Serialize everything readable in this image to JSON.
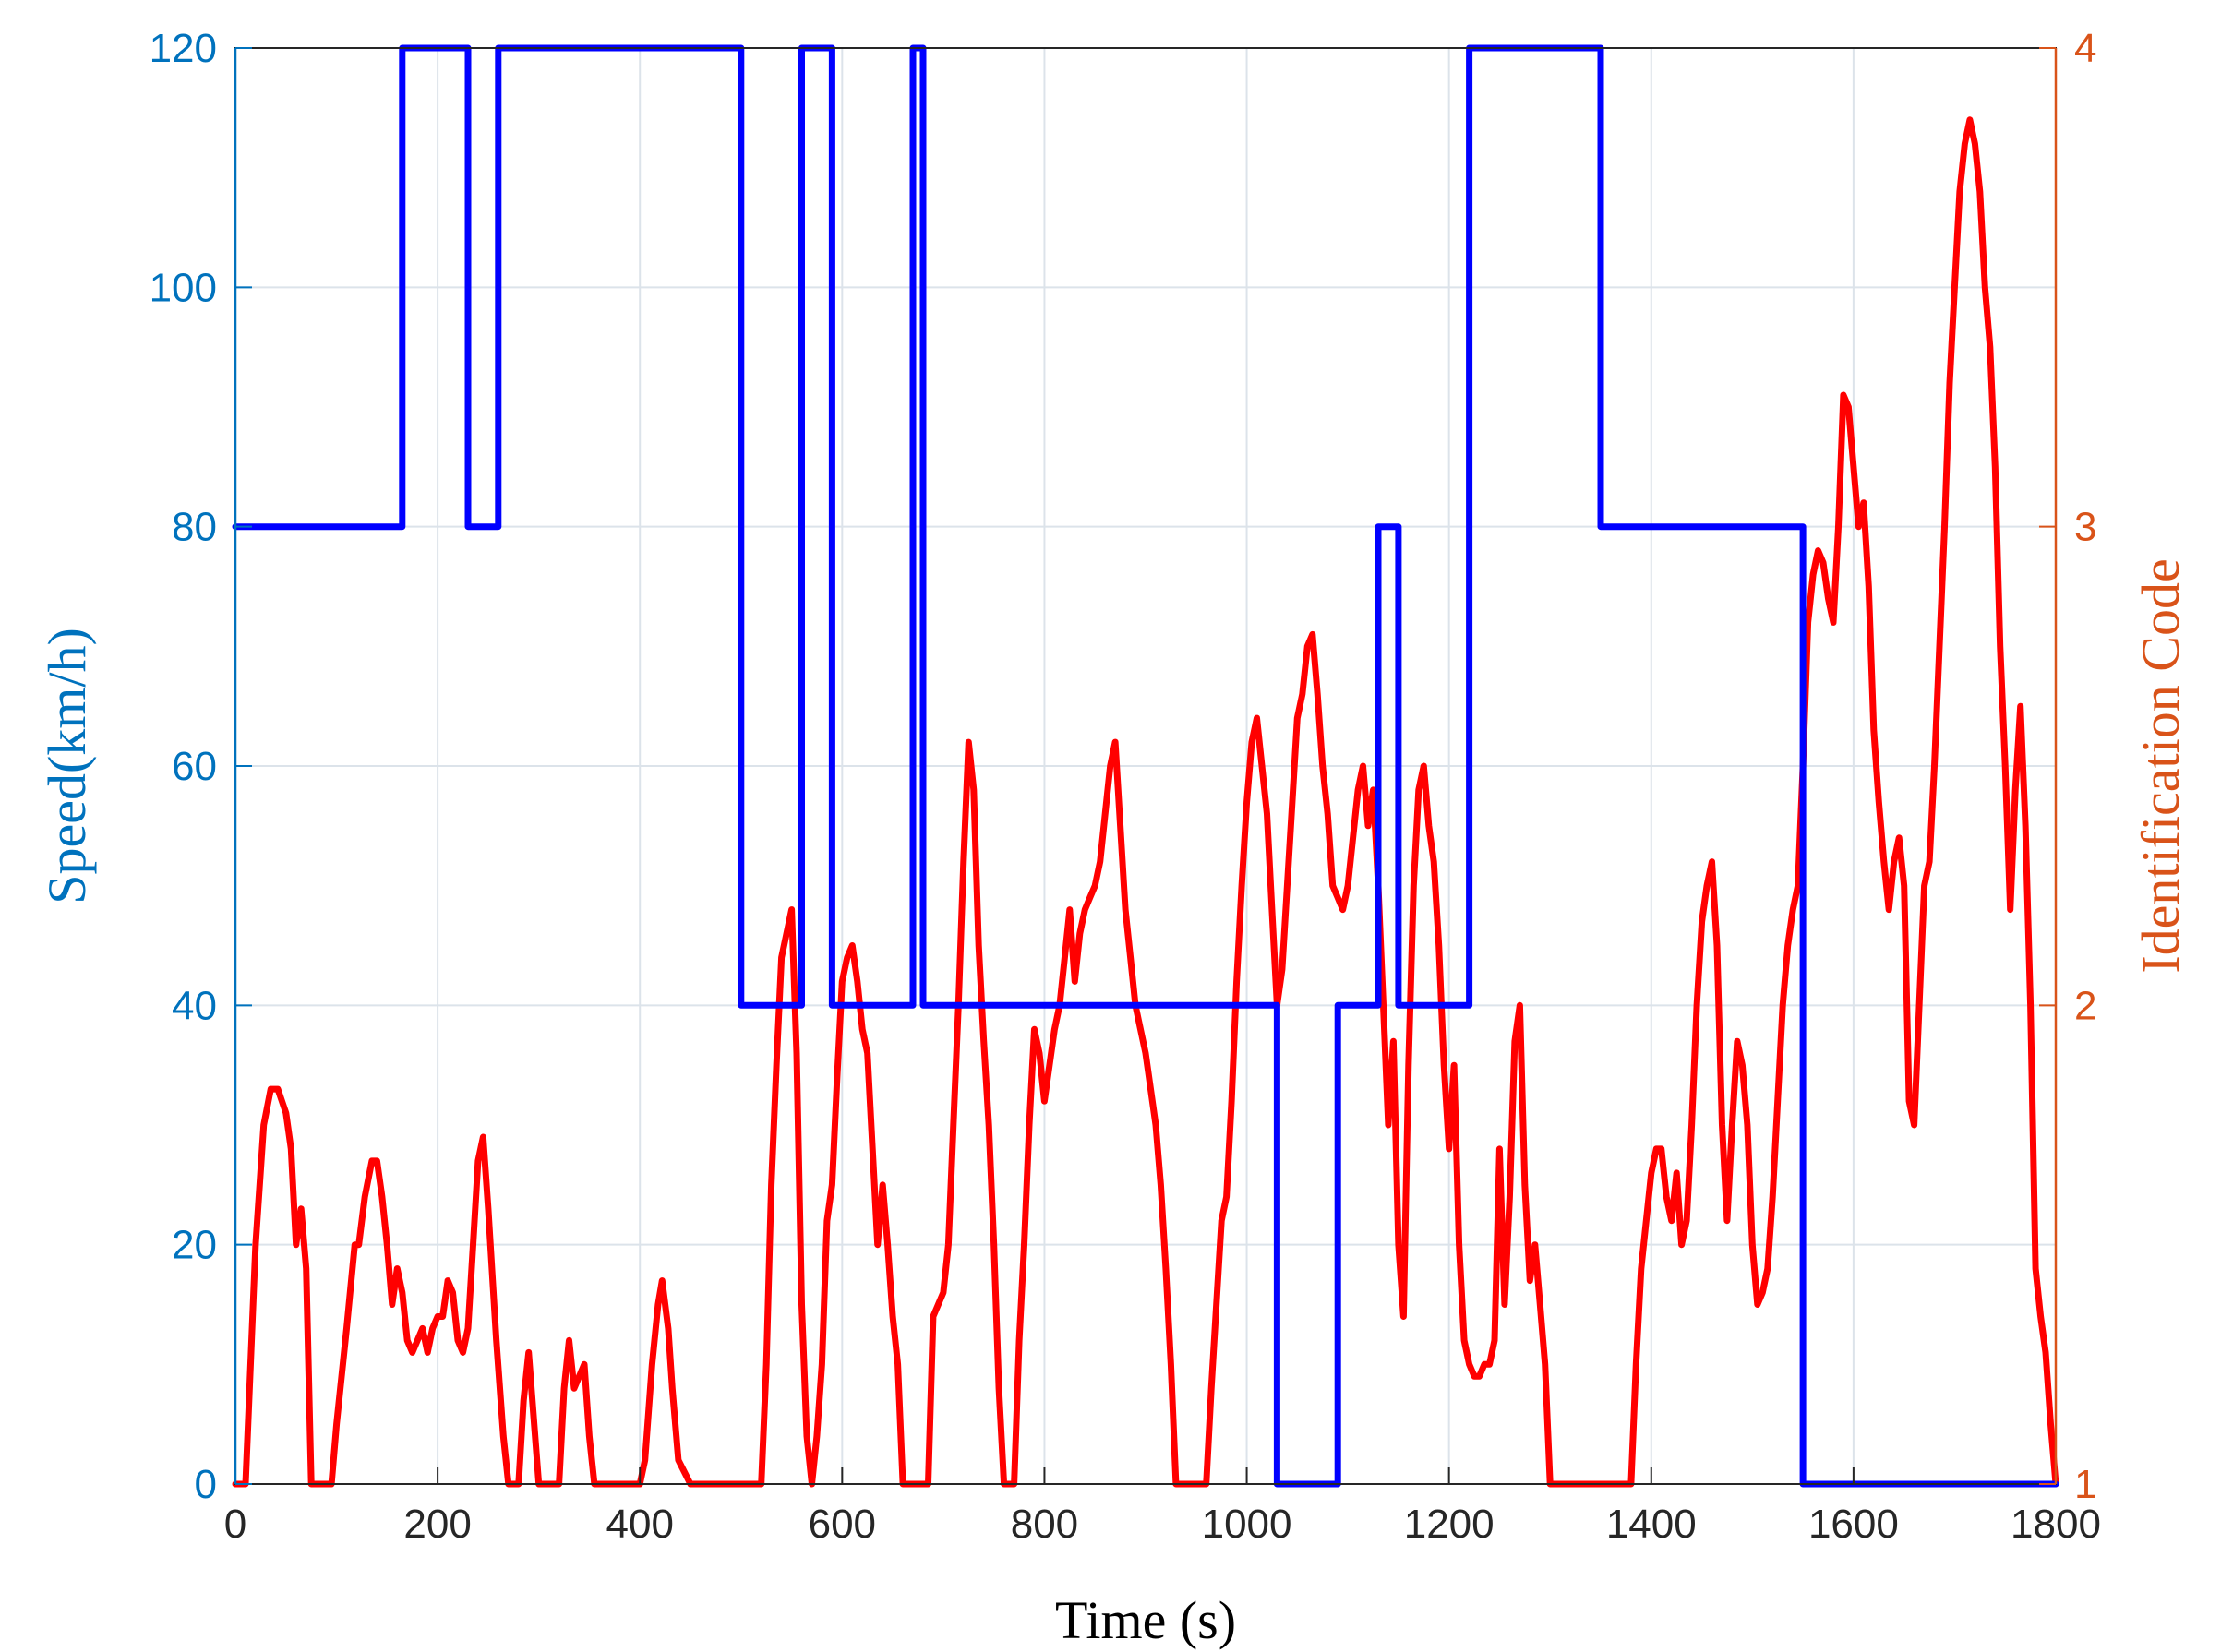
{
  "chart_data": {
    "type": "line",
    "title": "",
    "xlabel": "Time (s)",
    "ylabel_left": "Speed(km/h)",
    "ylabel_right": "Identification Code",
    "xlim": [
      0,
      1800
    ],
    "ylim_left": [
      0,
      120
    ],
    "ylim_right": [
      1,
      4
    ],
    "grid": true,
    "x_ticks": [
      "0",
      "200",
      "400",
      "600",
      "800",
      "1000",
      "1200",
      "1400",
      "1600",
      "1800"
    ],
    "y_left_ticks": [
      "0",
      "20",
      "40",
      "60",
      "80",
      "100",
      "120"
    ],
    "y_right_ticks": [
      "1",
      "2",
      "3",
      "4"
    ],
    "colors": {
      "left_axis": "#0072BD",
      "right_axis": "#D95319",
      "speed_line": "#FF0000",
      "code_line": "#0000FF",
      "grid": "#DCE3EA",
      "box": "#262626"
    },
    "series": [
      {
        "axis": "left",
        "color": "#FF0000",
        "x": [
          0,
          10,
          20,
          28,
          35,
          42,
          50,
          55,
          60,
          65,
          70,
          75,
          80,
          85,
          95,
          100,
          110,
          118,
          122,
          128,
          135,
          140,
          145,
          150,
          155,
          160,
          165,
          170,
          175,
          180,
          185,
          190,
          195,
          200,
          205,
          210,
          215,
          220,
          225,
          230,
          235,
          240,
          245,
          250,
          258,
          265,
          270,
          275,
          280,
          285,
          290,
          300,
          320,
          325,
          330,
          335,
          340,
          345,
          350,
          355,
          370,
          400,
          405,
          412,
          418,
          422,
          428,
          432,
          438,
          450,
          480,
          500,
          510,
          515,
          520,
          525,
          530,
          535,
          540,
          545,
          550,
          555,
          560,
          565,
          570,
          575,
          580,
          585,
          590,
          595,
          600,
          605,
          610,
          615,
          620,
          625,
          630,
          635,
          640,
          645,
          650,
          655,
          660,
          665,
          668,
          672,
          680,
          685,
          690,
          695,
          700,
          705,
          710,
          715,
          720,
          725,
          730,
          735,
          740,
          745,
          750,
          755,
          760,
          765,
          770,
          775,
          780,
          785,
          790,
          795,
          800,
          805,
          810,
          815,
          820,
          825,
          830,
          835,
          840,
          845,
          850,
          855,
          860,
          865,
          870,
          875,
          880,
          885,
          890,
          895,
          900,
          905,
          910,
          915,
          920,
          925,
          930,
          935,
          940,
          945,
          950,
          955,
          960,
          965,
          970,
          975,
          980,
          985,
          990,
          995,
          1000,
          1005,
          1010,
          1015,
          1020,
          1025,
          1030,
          1035,
          1040,
          1045,
          1050,
          1055,
          1060,
          1065,
          1070,
          1075,
          1080,
          1085,
          1090,
          1095,
          1100,
          1105,
          1110,
          1115,
          1120,
          1125,
          1130,
          1135,
          1140,
          1145,
          1150,
          1155,
          1160,
          1165,
          1170,
          1175,
          1180,
          1185,
          1190,
          1195,
          1200,
          1205,
          1210,
          1215,
          1220,
          1225,
          1230,
          1235,
          1240,
          1245,
          1250,
          1255,
          1260,
          1265,
          1270,
          1275,
          1280,
          1285,
          1290,
          1295,
          1300,
          1310,
          1320,
          1330,
          1340,
          1350,
          1360,
          1370,
          1380,
          1385,
          1390,
          1395,
          1400,
          1405,
          1410,
          1415,
          1420,
          1425,
          1430,
          1435,
          1440,
          1445,
          1450,
          1455,
          1460,
          1465,
          1470,
          1475,
          1480,
          1485,
          1490,
          1495,
          1500,
          1505,
          1510,
          1515,
          1520,
          1525,
          1530,
          1535,
          1540,
          1545,
          1550,
          1555,
          1560,
          1565,
          1570,
          1575,
          1580,
          1585,
          1590,
          1595,
          1600,
          1605,
          1610,
          1615,
          1620,
          1625,
          1630,
          1635,
          1640,
          1645,
          1650,
          1655,
          1660,
          1665,
          1670,
          1675,
          1680,
          1685,
          1690,
          1695,
          1700,
          1705,
          1710,
          1715,
          1720,
          1725,
          1730,
          1735,
          1740,
          1745,
          1750,
          1755,
          1760,
          1765,
          1770,
          1775,
          1780,
          1785,
          1790,
          1795,
          1800
        ],
        "y": [
          0,
          0,
          20,
          30,
          33,
          33,
          31,
          28,
          20,
          23,
          18,
          0,
          0,
          0,
          0,
          5,
          13,
          20,
          20,
          24,
          27,
          27,
          24,
          20,
          15,
          18,
          16,
          12,
          11,
          12,
          13,
          11,
          13,
          14,
          14,
          17,
          16,
          12,
          11,
          13,
          20,
          27,
          29,
          23,
          12,
          4,
          0,
          0,
          0,
          7,
          11,
          0,
          0,
          8,
          12,
          8,
          9,
          10,
          4,
          0,
          0,
          0,
          2,
          10,
          15,
          17,
          13,
          8,
          2,
          0,
          0,
          0,
          0,
          0,
          0,
          10,
          25,
          35,
          44,
          46,
          48,
          36,
          15,
          4,
          0,
          4,
          10,
          22,
          25,
          34,
          42,
          44,
          45,
          42,
          38,
          36,
          28,
          20,
          25,
          20,
          14,
          10,
          0,
          0,
          0,
          0,
          0,
          0,
          14,
          15,
          16,
          20,
          30,
          40,
          52,
          62,
          58,
          45,
          37,
          30,
          20,
          8,
          0,
          0,
          0,
          12,
          20,
          30,
          38,
          36,
          32,
          35,
          38,
          40,
          44,
          48,
          42,
          46,
          48,
          49,
          50,
          52,
          56,
          60,
          62,
          55,
          48,
          44,
          40,
          38,
          36,
          33,
          30,
          25,
          18,
          10,
          0,
          0,
          0,
          0,
          0,
          0,
          0,
          8,
          15,
          22,
          24,
          32,
          42,
          50,
          57,
          62,
          64,
          60,
          56,
          48,
          40,
          43,
          50,
          57,
          64,
          66,
          70,
          71,
          66,
          60,
          56,
          50,
          49,
          48,
          50,
          54,
          58,
          60,
          55,
          58,
          50,
          40,
          30,
          37,
          20,
          14,
          35,
          50,
          58,
          60,
          55,
          52,
          45,
          35,
          28,
          35,
          20,
          12,
          10,
          9,
          9,
          10,
          10,
          12,
          28,
          15,
          24,
          37,
          40,
          25,
          17,
          20,
          15,
          10,
          0,
          0,
          0,
          0,
          0,
          0,
          0,
          0,
          0,
          10,
          18,
          22,
          26,
          28,
          28,
          24,
          22,
          26,
          20,
          22,
          30,
          40,
          47,
          50,
          52,
          45,
          30,
          22,
          30,
          37,
          35,
          30,
          20,
          15,
          16,
          18,
          24,
          32,
          40,
          45,
          48,
          50,
          60,
          72,
          76,
          78,
          77,
          74,
          72,
          80,
          91,
          90,
          85,
          80,
          82,
          75,
          63,
          57,
          52,
          48,
          52,
          54,
          50,
          32,
          30,
          40,
          50,
          52,
          60,
          70,
          80,
          92,
          100,
          108,
          112,
          114,
          112,
          108,
          100,
          95,
          85,
          70,
          60,
          48,
          58,
          65,
          55,
          40,
          18,
          14,
          11,
          5,
          0
        ]
      },
      {
        "axis": "right",
        "color": "#0000FF",
        "x": [
          0,
          165,
          165,
          230,
          230,
          260,
          260,
          500,
          500,
          560,
          560,
          590,
          590,
          670,
          670,
          680,
          680,
          1030,
          1030,
          1090,
          1090,
          1130,
          1130,
          1150,
          1150,
          1220,
          1220,
          1350,
          1350,
          1550,
          1550,
          1800
        ],
        "y": [
          3,
          3,
          4,
          4,
          3,
          3,
          4,
          4,
          2,
          2,
          4,
          4,
          2,
          2,
          4,
          4,
          2,
          2,
          1,
          1,
          2,
          2,
          3,
          3,
          2,
          2,
          4,
          4,
          3,
          3,
          1,
          1
        ]
      }
    ]
  }
}
